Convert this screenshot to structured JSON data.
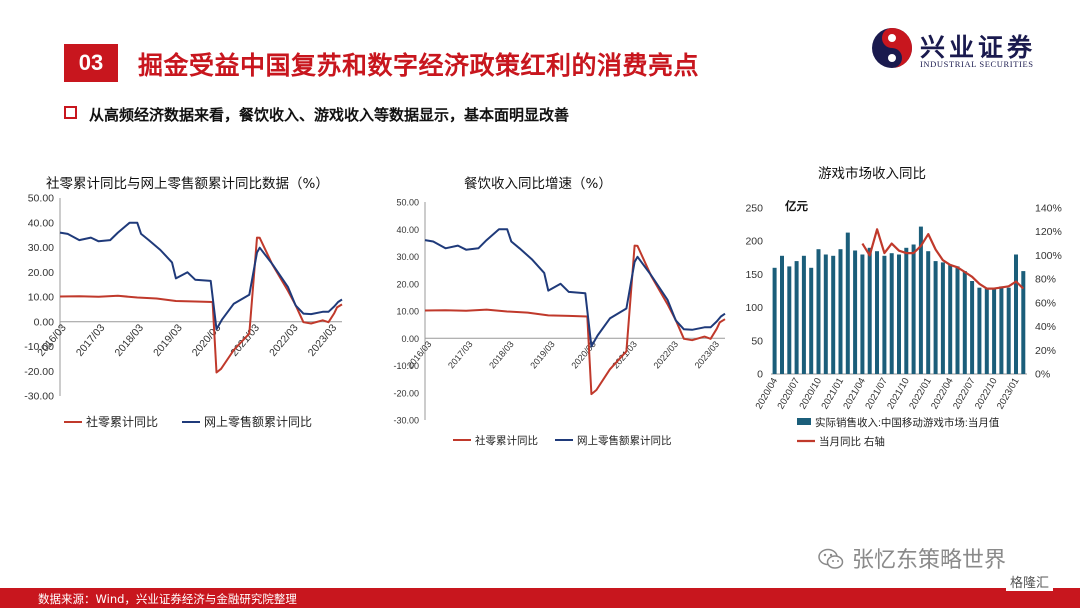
{
  "header": {
    "section_no": "03",
    "title": "掘金受益中国复苏和数字经济政策红利的消费亮点",
    "logo_cn": "兴业证券",
    "logo_en": "INDUSTRIAL SECURITIES"
  },
  "subtitle": "从高频经济数据来看，餐饮收入、游戏收入等数据显示，基本面明显改善",
  "charts": [
    {
      "title": "社零累计同比与网上零售额累计同比数据（%）",
      "legend": [
        "社零累计同比",
        "网上零售额累计同比"
      ]
    },
    {
      "title": "餐饮收入同比增速（%）",
      "legend": [
        "社零累计同比",
        "网上零售额累计同比"
      ]
    },
    {
      "title": "游戏市场收入同比",
      "unit_label": "亿元",
      "legend": [
        "实际销售收入:中国移动游戏市场:当月值",
        "当月同比 右轴"
      ]
    }
  ],
  "chart_data": [
    {
      "type": "line",
      "title": "社零累计同比与网上零售额累计同比数据（%）",
      "ylim": [
        -30,
        50
      ],
      "y_ticks": [
        "50.00",
        "40.00",
        "30.00",
        "20.00",
        "10.00",
        "0.00",
        "-10.00",
        "-20.00",
        "-30.00"
      ],
      "x_ticks": [
        "2016/03",
        "2017/03",
        "2018/03",
        "2019/03",
        "2020/03",
        "2021/03",
        "2022/03",
        "2023/03"
      ],
      "series": [
        {
          "name": "社零累计同比",
          "color": "#c0392b",
          "x": [
            2016.0,
            2016.5,
            2017.0,
            2017.5,
            2018.0,
            2018.5,
            2019.0,
            2019.5,
            2019.95,
            2020.05,
            2020.17,
            2020.5,
            2020.9,
            2021.1,
            2021.17,
            2021.5,
            2021.9,
            2022.1,
            2022.3,
            2022.5,
            2022.8,
            2022.95,
            2023.1,
            2023.17,
            2023.3
          ],
          "y": [
            10.2,
            10.3,
            10.1,
            10.5,
            9.8,
            9.4,
            8.4,
            8.2,
            8.0,
            -20.5,
            -19.0,
            -11.4,
            -4.8,
            34.0,
            33.9,
            23.0,
            12.5,
            6.7,
            -0.2,
            -0.7,
            0.6,
            -0.2,
            3.5,
            5.8,
            7.0
          ]
        },
        {
          "name": "网上零售额累计同比",
          "color": "#1f3a7a",
          "x": [
            2016.0,
            2016.2,
            2016.5,
            2016.8,
            2017.0,
            2017.3,
            2017.5,
            2017.8,
            2018.0,
            2018.1,
            2018.3,
            2018.6,
            2018.9,
            2019.0,
            2019.3,
            2019.5,
            2019.9,
            2020.05,
            2020.2,
            2020.5,
            2020.9,
            2021.1,
            2021.17,
            2021.5,
            2021.9,
            2022.1,
            2022.3,
            2022.5,
            2022.8,
            2022.95,
            2023.1,
            2023.2,
            2023.3
          ],
          "y": [
            36.0,
            35.5,
            33.0,
            34.0,
            32.5,
            33.0,
            36.0,
            40.0,
            40.0,
            35.5,
            33.0,
            29.0,
            24.0,
            17.5,
            20.0,
            17.0,
            16.5,
            -3.0,
            1.0,
            7.3,
            10.9,
            28.0,
            29.9,
            23.2,
            14.1,
            6.6,
            3.3,
            3.1,
            4.0,
            4.0,
            6.2,
            8.0,
            9.0
          ]
        }
      ]
    },
    {
      "type": "line",
      "title": "餐饮收入同比增速（%）",
      "ylim": [
        -30,
        50
      ],
      "y_ticks": [
        "50.00",
        "40.00",
        "30.00",
        "20.00",
        "10.00",
        "0.00",
        "-10.00",
        "-20.00",
        "-30.00"
      ],
      "x_ticks": [
        "2016/03",
        "2017/03",
        "2018/03",
        "2019/03",
        "2020/03",
        "2021/03",
        "2022/03",
        "2023/03"
      ],
      "series": [
        {
          "name": "社零累计同比",
          "color": "#c0392b",
          "x": [
            2016.0,
            2016.5,
            2017.0,
            2017.5,
            2018.0,
            2018.5,
            2019.0,
            2019.5,
            2019.95,
            2020.05,
            2020.17,
            2020.5,
            2020.9,
            2021.1,
            2021.17,
            2021.5,
            2021.9,
            2022.1,
            2022.3,
            2022.5,
            2022.8,
            2022.95,
            2023.1,
            2023.17,
            2023.3
          ],
          "y": [
            10.2,
            10.3,
            10.1,
            10.5,
            9.8,
            9.4,
            8.4,
            8.2,
            8.0,
            -20.5,
            -19.0,
            -11.4,
            -4.8,
            34.0,
            33.9,
            23.0,
            12.5,
            6.7,
            -0.2,
            -0.7,
            0.6,
            -0.2,
            3.5,
            5.8,
            7.0
          ]
        },
        {
          "name": "网上零售额累计同比",
          "color": "#1f3a7a",
          "x": [
            2016.0,
            2016.2,
            2016.5,
            2016.8,
            2017.0,
            2017.3,
            2017.5,
            2017.8,
            2018.0,
            2018.1,
            2018.3,
            2018.6,
            2018.9,
            2019.0,
            2019.3,
            2019.5,
            2019.9,
            2020.05,
            2020.2,
            2020.5,
            2020.9,
            2021.1,
            2021.17,
            2021.5,
            2021.9,
            2022.1,
            2022.3,
            2022.5,
            2022.8,
            2022.95,
            2023.1,
            2023.2,
            2023.3
          ],
          "y": [
            36.0,
            35.5,
            33.0,
            34.0,
            32.5,
            33.0,
            36.0,
            40.0,
            40.0,
            35.5,
            33.0,
            29.0,
            24.0,
            17.5,
            20.0,
            17.0,
            16.5,
            -3.0,
            1.0,
            7.3,
            10.9,
            28.0,
            29.9,
            23.2,
            14.1,
            6.6,
            3.3,
            3.1,
            4.0,
            4.0,
            6.2,
            8.0,
            9.0
          ]
        }
      ]
    },
    {
      "type": "bar",
      "title": "游戏市场收入同比",
      "ylabel": "亿元",
      "ylim": [
        0,
        250
      ],
      "y2lim": [
        0,
        140
      ],
      "y_ticks": [
        "250",
        "200",
        "150",
        "100",
        "50",
        "0"
      ],
      "y2_ticks": [
        "140%",
        "120%",
        "100%",
        "80%",
        "60%",
        "40%",
        "20%",
        "0%"
      ],
      "x_ticks": [
        "2020/04",
        "2020/07",
        "2020/10",
        "2021/01",
        "2021/04",
        "2021/07",
        "2021/10",
        "2022/01",
        "2022/04",
        "2022/07",
        "2022/10",
        "2023/01"
      ],
      "bar_color": "#1b5e7a",
      "line_color": "#c0392b",
      "series": [
        {
          "name": "实际销售收入:中国移动游戏市场:当月值",
          "values": [
            160,
            178,
            162,
            170,
            178,
            160,
            188,
            180,
            178,
            188,
            213,
            186,
            180,
            190,
            185,
            178,
            182,
            180,
            190,
            195,
            222,
            185,
            170,
            168,
            165,
            162,
            155,
            140,
            130,
            130,
            130,
            132,
            130,
            180,
            155
          ]
        },
        {
          "name": "当月同比 右轴",
          "values": [
            null,
            null,
            null,
            null,
            null,
            null,
            null,
            null,
            null,
            null,
            null,
            null,
            110,
            100,
            122,
            102,
            110,
            104,
            102,
            102,
            108,
            118,
            105,
            96,
            92,
            90,
            86,
            82,
            76,
            72,
            72,
            73,
            74,
            78,
            72
          ]
        }
      ]
    }
  ],
  "source": "数据来源：Wind，兴业证券经济与金融研究院整理",
  "watermark": "张忆东策略世界",
  "platform": "格隆汇"
}
